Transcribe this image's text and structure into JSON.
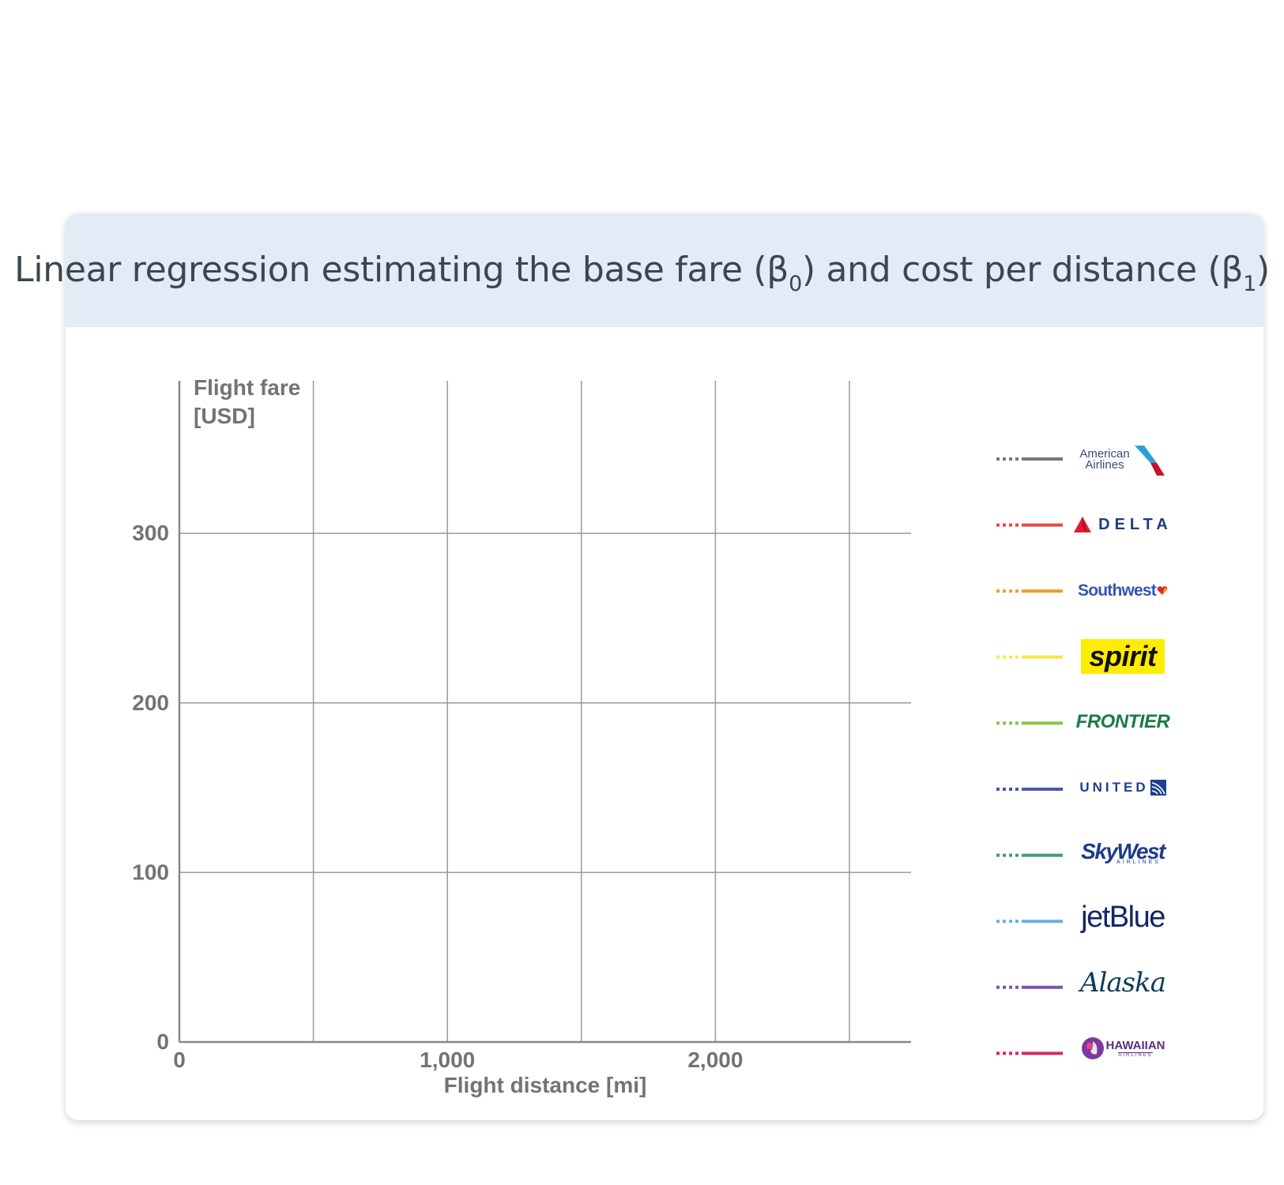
{
  "title": {
    "main": "Linear regression estimating the base fare (β",
    "sub0": "0",
    "middle": ") and cost per distance (β",
    "sub1": "1",
    "end": ")"
  },
  "chart_data": {
    "type": "line",
    "title": "Linear regression estimating the base fare (β0) and cost per distance (β1)",
    "xlabel": "Flight distance [mi]",
    "ylabel_lines": [
      "Flight fare",
      "[USD]"
    ],
    "xlim": [
      0,
      2730
    ],
    "ylim": [
      0,
      390
    ],
    "x_ticks": [
      {
        "value": 0,
        "label": "0"
      },
      {
        "value": 1000,
        "label": "1,000"
      },
      {
        "value": 2000,
        "label": "2,000"
      }
    ],
    "y_ticks": [
      {
        "value": 0,
        "label": "0"
      },
      {
        "value": 100,
        "label": "100"
      },
      {
        "value": 200,
        "label": "200"
      },
      {
        "value": 300,
        "label": "300"
      }
    ],
    "x_grid": [
      500,
      1000,
      1500,
      2000,
      2500
    ],
    "y_grid": [
      100,
      200,
      300
    ],
    "grid": true,
    "legend_position": "right",
    "series": [
      {
        "name": "American Airlines",
        "color": "#777777",
        "logo": "american-airlines-logo"
      },
      {
        "name": "DELTA",
        "color": "#e8483e",
        "logo": "delta-logo"
      },
      {
        "name": "Southwest",
        "color": "#f39a2b",
        "logo": "southwest-logo"
      },
      {
        "name": "spirit",
        "color": "#f3e84a",
        "logo": "spirit-logo"
      },
      {
        "name": "FRONTIER",
        "color": "#8bc34a",
        "logo": "frontier-logo"
      },
      {
        "name": "UNITED",
        "color": "#4a57a8",
        "logo": "united-logo"
      },
      {
        "name": "SkyWest",
        "color": "#3f9a80",
        "logo": "skywest-logo"
      },
      {
        "name": "jetBlue",
        "color": "#6aaede",
        "logo": "jetblue-logo"
      },
      {
        "name": "Alaska",
        "color": "#7a55b0",
        "logo": "alaska-logo"
      },
      {
        "name": "HAWAIIAN",
        "color": "#d6286a",
        "logo": "hawaiian-logo"
      }
    ]
  },
  "logos": {
    "american_line1": "American",
    "american_line2": "Airlines",
    "delta": "DELTA",
    "southwest": "Southwest",
    "spirit": "spirit",
    "frontier": "FRONTIER",
    "united": "UNITED",
    "skywest": "SkyWest",
    "skywest_sub": "AIRLINES",
    "jetblue": "jetBlue",
    "alaska": "Alaska",
    "hawaiian": "HAWAIIAN",
    "hawaiian_sub": "AIRLINES"
  }
}
